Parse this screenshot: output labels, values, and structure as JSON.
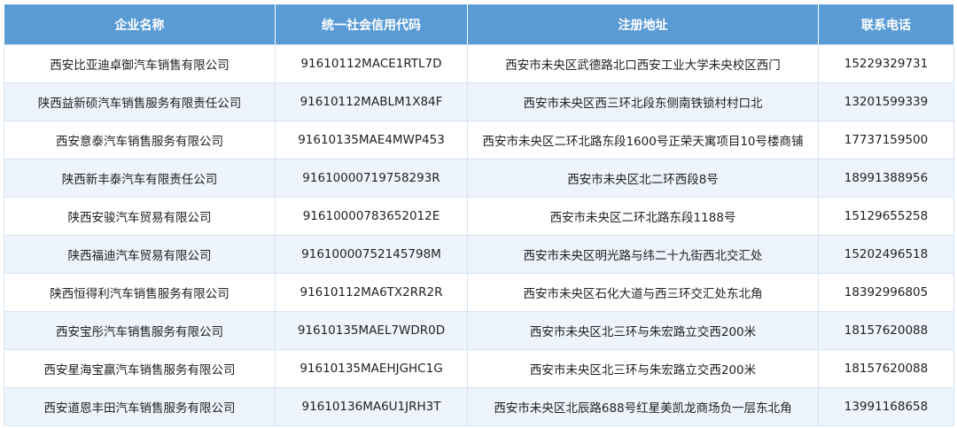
{
  "headers": [
    "企业名称",
    "统一社会信用代码",
    "注册地址",
    "联系电话"
  ],
  "rows": [
    [
      "西安比亚迪卓御汽车销售有限公司",
      "91610112MACE1RTL7D",
      "西安市未央区武德路北口西安工业大学未央校区西门",
      "15229329731"
    ],
    [
      "陕西益新硕汽车销售服务有限责任公司",
      "91610112MABLM1X84F",
      "西安市未央区西三环北段东侧南铁锁村村口北",
      "13201599339"
    ],
    [
      "西安意泰汽车销售服务有限公司",
      "91610135MAE4MWP453",
      "西安市未央区二环北路东段1600号正荣天寓项目10号楼商铺",
      "17737159500"
    ],
    [
      "陕西新丰泰汽车有限责任公司",
      "91610000719758293R",
      "西安市未央区北二环西段8号",
      "18991388956"
    ],
    [
      "陕西安骏汽车贸易有限公司",
      "91610000783652012E",
      "西安市未央区二环北路东段1188号",
      "15129655258"
    ],
    [
      "陕西福迪汽车贸易有限公司",
      "91610000752145798M",
      "西安市未央区明光路与纬二十九街西北交汇处",
      "15202496518"
    ],
    [
      "陕西恒得利汽车销售服务有限公司",
      "91610112MA6TX2RR2R",
      "西安市未央区石化大道与西三环交汇处东北角",
      "18392996805"
    ],
    [
      "西安宝彤汽车销售服务有限公司",
      "91610135MAEL7WDR0D",
      "西安市未央区北三环与朱宏路立交西200米",
      "18157620088"
    ],
    [
      "西安星海宝赢汽车销售服务有限公司",
      "91610135MAEHJGHC1G",
      "西安市未央区北三环与朱宏路立交西200米",
      "18157620088"
    ],
    [
      "西安道恩丰田汽车销售服务有限公司",
      "91610136MA6U1JRH3T",
      "西安市未央区北辰路688号红星美凯龙商场负一层东北角",
      "13991168658"
    ]
  ],
  "colors": {
    "header_bg": "#5b9bd5",
    "alt_row_bg": "#eef4fb"
  }
}
